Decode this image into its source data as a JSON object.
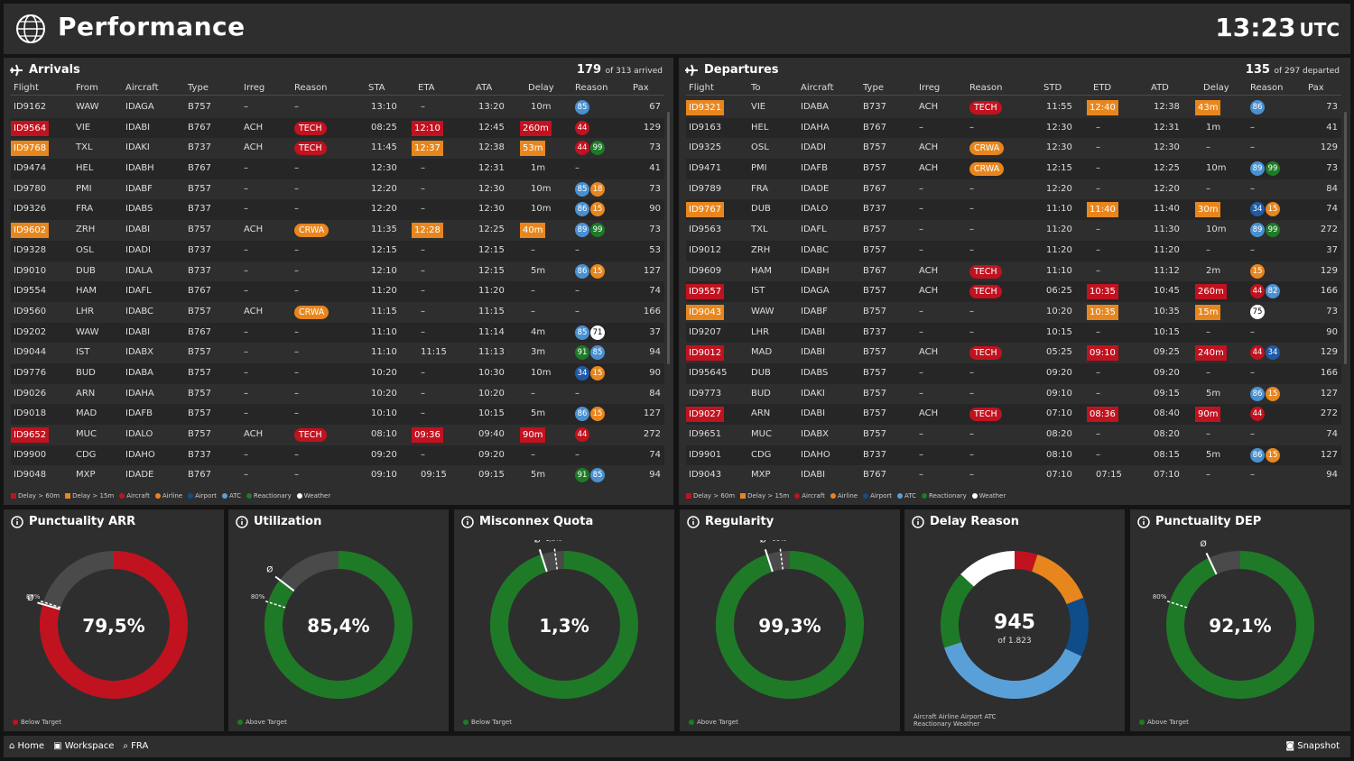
{
  "header": {
    "title": "Performance",
    "time": "13:23",
    "tz": "UTC"
  },
  "arrivals": {
    "title": "Arrivals",
    "count": "179",
    "count_text": "of 313 arrived",
    "columns": [
      "Flight",
      "From",
      "Aircraft",
      "Type",
      "Irreg",
      "Reason",
      "STA",
      "ETA",
      "ATA",
      "Delay",
      "Reason",
      "Pax"
    ],
    "rows": [
      [
        "ID9162",
        "WAW",
        "IDAGA",
        "B757",
        "–",
        "–",
        "13:10",
        "–",
        "13:20",
        "10m",
        "85",
        "67"
      ],
      [
        "ID9564",
        "VIE",
        "IDABI",
        "B767",
        "ACH",
        "TECH",
        "08:25",
        "12:10",
        "12:45",
        "260m",
        "44",
        "129"
      ],
      [
        "ID9768",
        "TXL",
        "IDAKI",
        "B737",
        "ACH",
        "TECH",
        "11:45",
        "12:37",
        "12:38",
        "53m",
        "44 99",
        "73"
      ],
      [
        "ID9474",
        "HEL",
        "IDABH",
        "B767",
        "–",
        "–",
        "12:30",
        "–",
        "12:31",
        "1m",
        "–",
        "41"
      ],
      [
        "ID9780",
        "PMI",
        "IDABF",
        "B757",
        "–",
        "–",
        "12:20",
        "–",
        "12:30",
        "10m",
        "85 18",
        "73"
      ],
      [
        "ID9326",
        "FRA",
        "IDABS",
        "B737",
        "–",
        "–",
        "12:20",
        "–",
        "12:30",
        "10m",
        "86 15",
        "90"
      ],
      [
        "ID9602",
        "ZRH",
        "IDABI",
        "B757",
        "ACH",
        "CRWA",
        "11:35",
        "12:28",
        "12:25",
        "40m",
        "89 99",
        "73"
      ],
      [
        "ID9328",
        "OSL",
        "IDADI",
        "B737",
        "–",
        "–",
        "12:15",
        "–",
        "12:15",
        "–",
        "–",
        "53"
      ],
      [
        "ID9010",
        "DUB",
        "IDALA",
        "B737",
        "–",
        "–",
        "12:10",
        "–",
        "12:15",
        "5m",
        "86 15",
        "127"
      ],
      [
        "ID9554",
        "HAM",
        "IDAFL",
        "B767",
        "–",
        "–",
        "11:20",
        "–",
        "11:20",
        "–",
        "–",
        "74"
      ],
      [
        "ID9560",
        "LHR",
        "IDABC",
        "B757",
        "ACH",
        "CRWA",
        "11:15",
        "–",
        "11:15",
        "–",
        "–",
        "166"
      ],
      [
        "ID9202",
        "WAW",
        "IDABI",
        "B767",
        "–",
        "–",
        "11:10",
        "–",
        "11:14",
        "4m",
        "85 71",
        "37"
      ],
      [
        "ID9044",
        "IST",
        "IDABX",
        "B757",
        "–",
        "–",
        "11:10",
        "11:15",
        "11:13",
        "3m",
        "91 85",
        "94"
      ],
      [
        "ID9776",
        "BUD",
        "IDABA",
        "B757",
        "–",
        "–",
        "10:20",
        "–",
        "10:30",
        "10m",
        "34 15",
        "90"
      ],
      [
        "ID9026",
        "ARN",
        "IDAHA",
        "B757",
        "–",
        "–",
        "10:20",
        "–",
        "10:20",
        "–",
        "–",
        "84"
      ],
      [
        "ID9018",
        "MAD",
        "IDAFB",
        "B757",
        "–",
        "–",
        "10:10",
        "–",
        "10:15",
        "5m",
        "86 15",
        "127"
      ],
      [
        "ID9652",
        "MUC",
        "IDALO",
        "B757",
        "ACH",
        "TECH",
        "08:10",
        "09:36",
        "09:40",
        "90m",
        "44",
        "272"
      ],
      [
        "ID9900",
        "CDG",
        "IDAHO",
        "B737",
        "–",
        "–",
        "09:20",
        "–",
        "09:20",
        "–",
        "–",
        "74"
      ],
      [
        "ID9048",
        "MXP",
        "IDADE",
        "B767",
        "–",
        "–",
        "09:10",
        "09:15",
        "09:15",
        "5m",
        "91 85",
        "94"
      ]
    ]
  },
  "departures": {
    "title": "Departures",
    "count": "135",
    "count_text": "of 297 departed",
    "columns": [
      "Flight",
      "To",
      "Aircraft",
      "Type",
      "Irreg",
      "Reason",
      "STD",
      "ETD",
      "ATD",
      "Delay",
      "Reason",
      "Pax"
    ],
    "rows": [
      [
        "ID9321",
        "VIE",
        "IDABA",
        "B737",
        "ACH",
        "TECH",
        "11:55",
        "12:40",
        "12:38",
        "43m",
        "86",
        "73"
      ],
      [
        "ID9163",
        "HEL",
        "IDAHA",
        "B767",
        "–",
        "–",
        "12:30",
        "–",
        "12:31",
        "1m",
        "–",
        "41"
      ],
      [
        "ID9325",
        "OSL",
        "IDADI",
        "B757",
        "ACH",
        "CRWA",
        "12:30",
        "–",
        "12:30",
        "–",
        "–",
        "129"
      ],
      [
        "ID9471",
        "PMI",
        "IDAFB",
        "B757",
        "ACH",
        "CRWA",
        "12:15",
        "–",
        "12:25",
        "10m",
        "89 99",
        "73"
      ],
      [
        "ID9789",
        "FRA",
        "IDADE",
        "B767",
        "–",
        "–",
        "12:20",
        "–",
        "12:20",
        "–",
        "–",
        "84"
      ],
      [
        "ID9767",
        "DUB",
        "IDALO",
        "B737",
        "–",
        "–",
        "11:10",
        "11:40",
        "11:40",
        "30m",
        "34 15",
        "74"
      ],
      [
        "ID9563",
        "TXL",
        "IDAFL",
        "B757",
        "–",
        "–",
        "11:20",
        "–",
        "11:30",
        "10m",
        "89 99",
        "272"
      ],
      [
        "ID9012",
        "ZRH",
        "IDABC",
        "B757",
        "–",
        "–",
        "11:20",
        "–",
        "11:20",
        "–",
        "–",
        "37"
      ],
      [
        "ID9609",
        "HAM",
        "IDABH",
        "B767",
        "ACH",
        "TECH",
        "11:10",
        "–",
        "11:12",
        "2m",
        "15",
        "129"
      ],
      [
        "ID9557",
        "IST",
        "IDAGA",
        "B757",
        "ACH",
        "TECH",
        "06:25",
        "10:35",
        "10:45",
        "260m",
        "44 82",
        "166"
      ],
      [
        "ID9043",
        "WAW",
        "IDABF",
        "B757",
        "–",
        "–",
        "10:20",
        "10:35",
        "10:35",
        "15m",
        "75",
        "73"
      ],
      [
        "ID9207",
        "LHR",
        "IDABI",
        "B737",
        "–",
        "–",
        "10:15",
        "–",
        "10:15",
        "–",
        "–",
        "90"
      ],
      [
        "ID9012",
        "MAD",
        "IDABI",
        "B757",
        "ACH",
        "TECH",
        "05:25",
        "09:10",
        "09:25",
        "240m",
        "44 34",
        "129"
      ],
      [
        "ID95645",
        "DUB",
        "IDABS",
        "B757",
        "–",
        "–",
        "09:20",
        "–",
        "09:20",
        "–",
        "–",
        "166"
      ],
      [
        "ID9773",
        "BUD",
        "IDAKI",
        "B757",
        "–",
        "–",
        "09:10",
        "–",
        "09:15",
        "5m",
        "86 15",
        "127"
      ],
      [
        "ID9027",
        "ARN",
        "IDABI",
        "B757",
        "ACH",
        "TECH",
        "07:10",
        "08:36",
        "08:40",
        "90m",
        "44",
        "272"
      ],
      [
        "ID9651",
        "MUC",
        "IDABX",
        "B757",
        "–",
        "–",
        "08:20",
        "–",
        "08:20",
        "–",
        "–",
        "74"
      ],
      [
        "ID9901",
        "CDG",
        "IDAHO",
        "B737",
        "–",
        "–",
        "08:10",
        "–",
        "08:15",
        "5m",
        "86 15",
        "127"
      ],
      [
        "ID9043",
        "MXP",
        "IDABI",
        "B767",
        "–",
        "–",
        "07:10",
        "07:15",
        "07:10",
        "–",
        "–",
        "94"
      ]
    ]
  },
  "legend": [
    "Delay > 60m",
    "Delay > 15m",
    "Aircraft",
    "Airline",
    "Airport",
    "ATC",
    "Reactionary",
    "Weather"
  ],
  "kpis": [
    {
      "title": "Punctuality ARR",
      "value": "79,5%",
      "fraction": 0.795,
      "color": "#c1121f",
      "legend": "Below Target",
      "target_label": "80%",
      "avg_label": "Ø"
    },
    {
      "title": "Utilization",
      "value": "85,4%",
      "fraction": 0.854,
      "color": "#1e7a26",
      "legend": "Above Target",
      "target_label": "80%",
      "avg_label": "Ø"
    },
    {
      "title": "Misconnex Quota",
      "value": "1,3%",
      "fraction": 0.95,
      "color": "#1e7a26",
      "legend": "Below Target",
      "target_label": "1,8%",
      "avg_label": "Ø"
    },
    {
      "title": "Regularity",
      "value": "99,3%",
      "fraction": 0.95,
      "color": "#1e7a26",
      "legend": "Above Target",
      "target_label": "99%",
      "avg_label": "Ø"
    },
    {
      "title": "Delay Reason",
      "value": "945",
      "sub": "of 1.823",
      "legend_line1": "Aircraft Airline Airport ATC",
      "legend_line2": "Reactionary Weather"
    },
    {
      "title": "Punctuality DEP",
      "value": "92,1%",
      "fraction": 0.93,
      "color": "#1e7a26",
      "legend": "Above Target",
      "target_label": "80%",
      "avg_label": "Ø"
    }
  ],
  "delay_reason_chart": {
    "type": "pie",
    "labels": [
      "Aircraft",
      "Airline",
      "Airport",
      "ATC",
      "Reactionary",
      "Weather"
    ],
    "values": [
      5,
      14,
      13,
      38,
      17,
      13
    ],
    "colors": [
      "#c1121f",
      "#e8861e",
      "#0e4d8a",
      "#5aa0d8",
      "#1e7a26",
      "#ffffff"
    ]
  },
  "reason_colors": {
    "44": "#c1121f",
    "18": "#e8861e",
    "15": "#e8861e",
    "85": "#4a90d0",
    "86": "#4a90d0",
    "89": "#4a90d0",
    "82": "#4a90d0",
    "34": "#1f5aa8",
    "91": "#1e7a26",
    "99": "#1e7a26",
    "71": "#ffffff",
    "75": "#ffffff"
  },
  "footer": {
    "home": "Home",
    "workspace": "Workspace",
    "station": "FRA",
    "snapshot": "Snapshot"
  }
}
